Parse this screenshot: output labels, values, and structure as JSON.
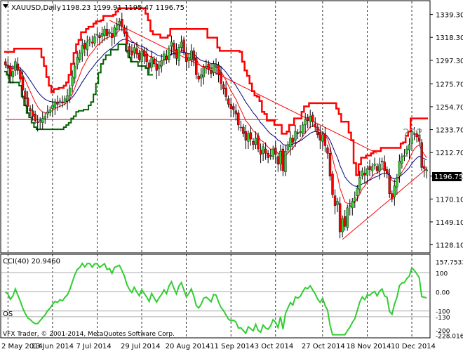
{
  "window": {
    "symbol_line": "XAUUSD,Daily",
    "ohlc": "1198.23 1199.91 1195.47 1196.75",
    "copyright": "VFX Trader, © 2001-2014, MetaQuotes Software Corp.",
    "annotation": "???"
  },
  "chart_data": [
    {
      "type": "candlestick",
      "symbol": "XAUUSD",
      "timeframe": "Daily",
      "open": 1198.23,
      "high": 1199.91,
      "low": 1195.47,
      "close": 1196.75,
      "current_price_label": "1196.75",
      "ylim": [
        1122,
        1350
      ],
      "y_ticks": [
        1339.3,
        1318.3,
        1297.3,
        1275.7,
        1254.7,
        1233.7,
        1212.7,
        1191.1,
        1170.1,
        1149.1,
        1128.1
      ],
      "y_tick_labels": [
        "1339.30",
        "1318.30",
        "1297.30",
        "1275.70",
        "1254.70",
        "1233.70",
        "1212.70",
        "1191.10",
        "1170.10",
        "1149.10",
        "1128.10"
      ],
      "x_tick_labels": [
        "2 May 2014",
        "13 Jun 2014",
        "7 Jul 2014",
        "29 Jul 2014",
        "20 Aug 2014",
        "11 Sep 2014",
        "3 Oct 2014",
        "27 Oct 2014",
        "18 Nov 2014",
        "10 Dec 2014"
      ],
      "colors": {
        "bull": "#32cd32",
        "bear": "#ff0000",
        "ma_fast": "#ff0000",
        "ma_slow": "#000080",
        "donchian": "#ff0000",
        "stop": "#006400",
        "grid": "#000000"
      },
      "closes": [
        1293,
        1290,
        1283,
        1287,
        1296,
        1288,
        1280,
        1270,
        1262,
        1255,
        1251,
        1246,
        1242,
        1240,
        1242,
        1244,
        1246,
        1250,
        1252,
        1256,
        1259,
        1257,
        1260,
        1258,
        1262,
        1265,
        1272,
        1282,
        1292,
        1300,
        1304,
        1311,
        1308,
        1314,
        1316,
        1313,
        1319,
        1321,
        1318,
        1322,
        1326,
        1320,
        1323,
        1318,
        1327,
        1330,
        1333,
        1328,
        1322,
        1312,
        1306,
        1302,
        1309,
        1303,
        1298,
        1306,
        1301,
        1296,
        1290,
        1300,
        1294,
        1288,
        1293,
        1297,
        1303,
        1298,
        1308,
        1314,
        1306,
        1299,
        1309,
        1314,
        1305,
        1296,
        1300,
        1306,
        1297,
        1284,
        1280,
        1284,
        1291,
        1292,
        1289,
        1285,
        1294,
        1293,
        1284,
        1276,
        1271,
        1264,
        1257,
        1253,
        1252,
        1248,
        1238,
        1236,
        1230,
        1224,
        1230,
        1225,
        1220,
        1226,
        1216,
        1211,
        1218,
        1212,
        1208,
        1210,
        1216,
        1211,
        1202,
        1214,
        1196,
        1214,
        1220,
        1226,
        1222,
        1232,
        1230,
        1232,
        1238,
        1243,
        1242,
        1246,
        1241,
        1236,
        1229,
        1224,
        1229,
        1219,
        1212,
        1191,
        1174,
        1164,
        1168,
        1140,
        1152,
        1145,
        1162,
        1164,
        1168,
        1171,
        1180,
        1190,
        1196,
        1192,
        1198,
        1197,
        1200,
        1202,
        1196,
        1202,
        1205,
        1196,
        1194,
        1175,
        1170,
        1182,
        1190,
        1205,
        1209,
        1210,
        1216,
        1220,
        1232,
        1230,
        1227,
        1223,
        1199,
        1198,
        1196.75
      ],
      "ma_fast_note": "red smoothed moving average",
      "ma_slow_note": "navy smoothed moving average"
    },
    {
      "type": "line",
      "name": "CCI(40)",
      "indicator_label": "CCI(40) 20.9460",
      "ylim": [
        -230,
        175
      ],
      "y_tick_labels": [
        "157.7533",
        "100",
        "0.00",
        "-100",
        "-130",
        "-200",
        "-228.0165"
      ],
      "levels": [
        100,
        0,
        -100,
        -130
      ],
      "level_labels": [
        "100",
        "-100",
        "-130"
      ],
      "overbought_label": "OS",
      "color": "#32cd32"
    }
  ]
}
